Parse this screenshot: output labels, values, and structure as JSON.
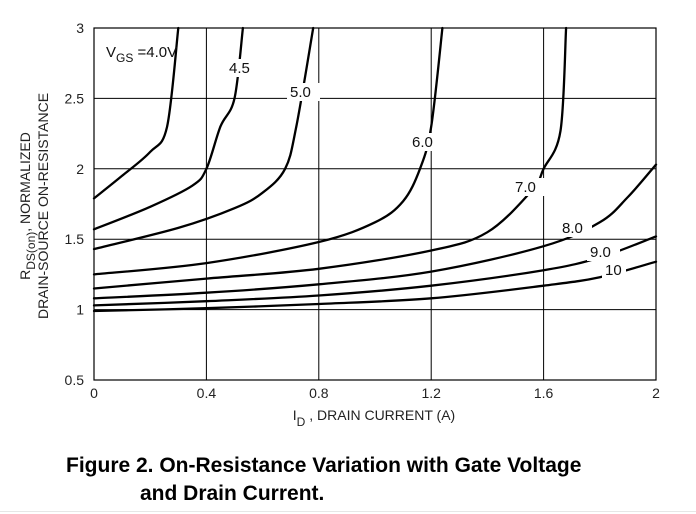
{
  "chart_data": {
    "type": "line",
    "title": "",
    "xlabel": "I_D , DRAIN CURRENT (A)",
    "xlabel_main": "I",
    "xlabel_sub": "D",
    "xlabel_rest": " , DRAIN CURRENT (A)",
    "ylabel_line1_main": "R",
    "ylabel_line1_sub": "DS(on)",
    "ylabel_line1_rest": ", NORMALIZED",
    "ylabel_line2": "DRAIN-SOURCE ON-RESISTANCE",
    "xlim": [
      0,
      2
    ],
    "ylim": [
      0.5,
      3
    ],
    "xticks": [
      "0",
      "0.4",
      "0.8",
      "1.2",
      "1.6",
      "2"
    ],
    "yticks": [
      "0.5",
      "1",
      "1.5",
      "2",
      "2.5",
      "3"
    ],
    "grid": true,
    "series": [
      {
        "name": "VGS =4.0V",
        "label_main": "V",
        "label_sub": "GS",
        "label_rest": " =4.0V",
        "x": [
          0,
          0.1,
          0.2,
          0.26,
          0.3
        ],
        "y": [
          1.79,
          1.95,
          2.12,
          2.3,
          3.0
        ]
      },
      {
        "name": "4.5",
        "x": [
          0,
          0.2,
          0.35,
          0.4,
          0.45,
          0.5,
          0.53
        ],
        "y": [
          1.57,
          1.73,
          1.88,
          2.0,
          2.3,
          2.5,
          3.0
        ]
      },
      {
        "name": "5.0",
        "x": [
          0,
          0.3,
          0.5,
          0.6,
          0.68,
          0.72,
          0.78
        ],
        "y": [
          1.43,
          1.58,
          1.72,
          1.83,
          2.0,
          2.3,
          3.0
        ]
      },
      {
        "name": "6.0",
        "x": [
          0,
          0.4,
          0.8,
          1.0,
          1.1,
          1.16,
          1.2,
          1.24
        ],
        "y": [
          1.25,
          1.33,
          1.48,
          1.62,
          1.77,
          2.0,
          2.3,
          3.0
        ]
      },
      {
        "name": "7.0",
        "x": [
          0,
          0.4,
          0.8,
          1.2,
          1.4,
          1.56,
          1.6,
          1.66,
          1.68
        ],
        "y": [
          1.15,
          1.22,
          1.29,
          1.42,
          1.55,
          1.85,
          2.0,
          2.27,
          3.0
        ]
      },
      {
        "name": "8.0",
        "x": [
          0,
          0.4,
          0.8,
          1.2,
          1.6,
          1.8,
          1.9,
          2.0
        ],
        "y": [
          1.08,
          1.12,
          1.18,
          1.27,
          1.45,
          1.62,
          1.8,
          2.03
        ]
      },
      {
        "name": "9.0",
        "x": [
          0,
          0.4,
          0.8,
          1.2,
          1.6,
          1.8,
          2.0
        ],
        "y": [
          1.03,
          1.06,
          1.1,
          1.17,
          1.28,
          1.37,
          1.52
        ]
      },
      {
        "name": "10",
        "x": [
          0,
          0.4,
          0.8,
          1.2,
          1.6,
          1.8,
          2.0
        ],
        "y": [
          0.99,
          1.01,
          1.04,
          1.08,
          1.17,
          1.23,
          1.34
        ]
      }
    ]
  },
  "caption": {
    "line1": "Figure 2. On-Resistance Variation with Gate Voltage",
    "line2": "and Drain Current."
  }
}
